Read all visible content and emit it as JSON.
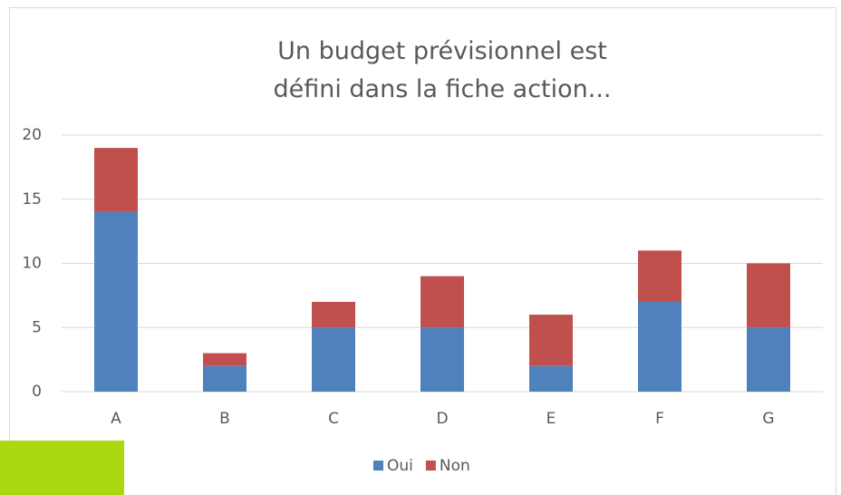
{
  "chart_data": {
    "type": "stacked_bar",
    "title": "Un budget prévisionnel est défini dans la fiche action...",
    "categories": [
      "A",
      "B",
      "C",
      "D",
      "E",
      "F",
      "G"
    ],
    "series": [
      {
        "name": "Oui",
        "color": "#4f81bd",
        "values": [
          14,
          2,
          5,
          5,
          2,
          7,
          5
        ]
      },
      {
        "name": "Non",
        "color": "#c0504d",
        "values": [
          5,
          1,
          2,
          4,
          4,
          4,
          5
        ]
      }
    ],
    "ylim": [
      0,
      20
    ],
    "yticks": [
      0,
      5,
      10,
      15,
      20
    ],
    "grid": true,
    "legend": "bottom"
  }
}
